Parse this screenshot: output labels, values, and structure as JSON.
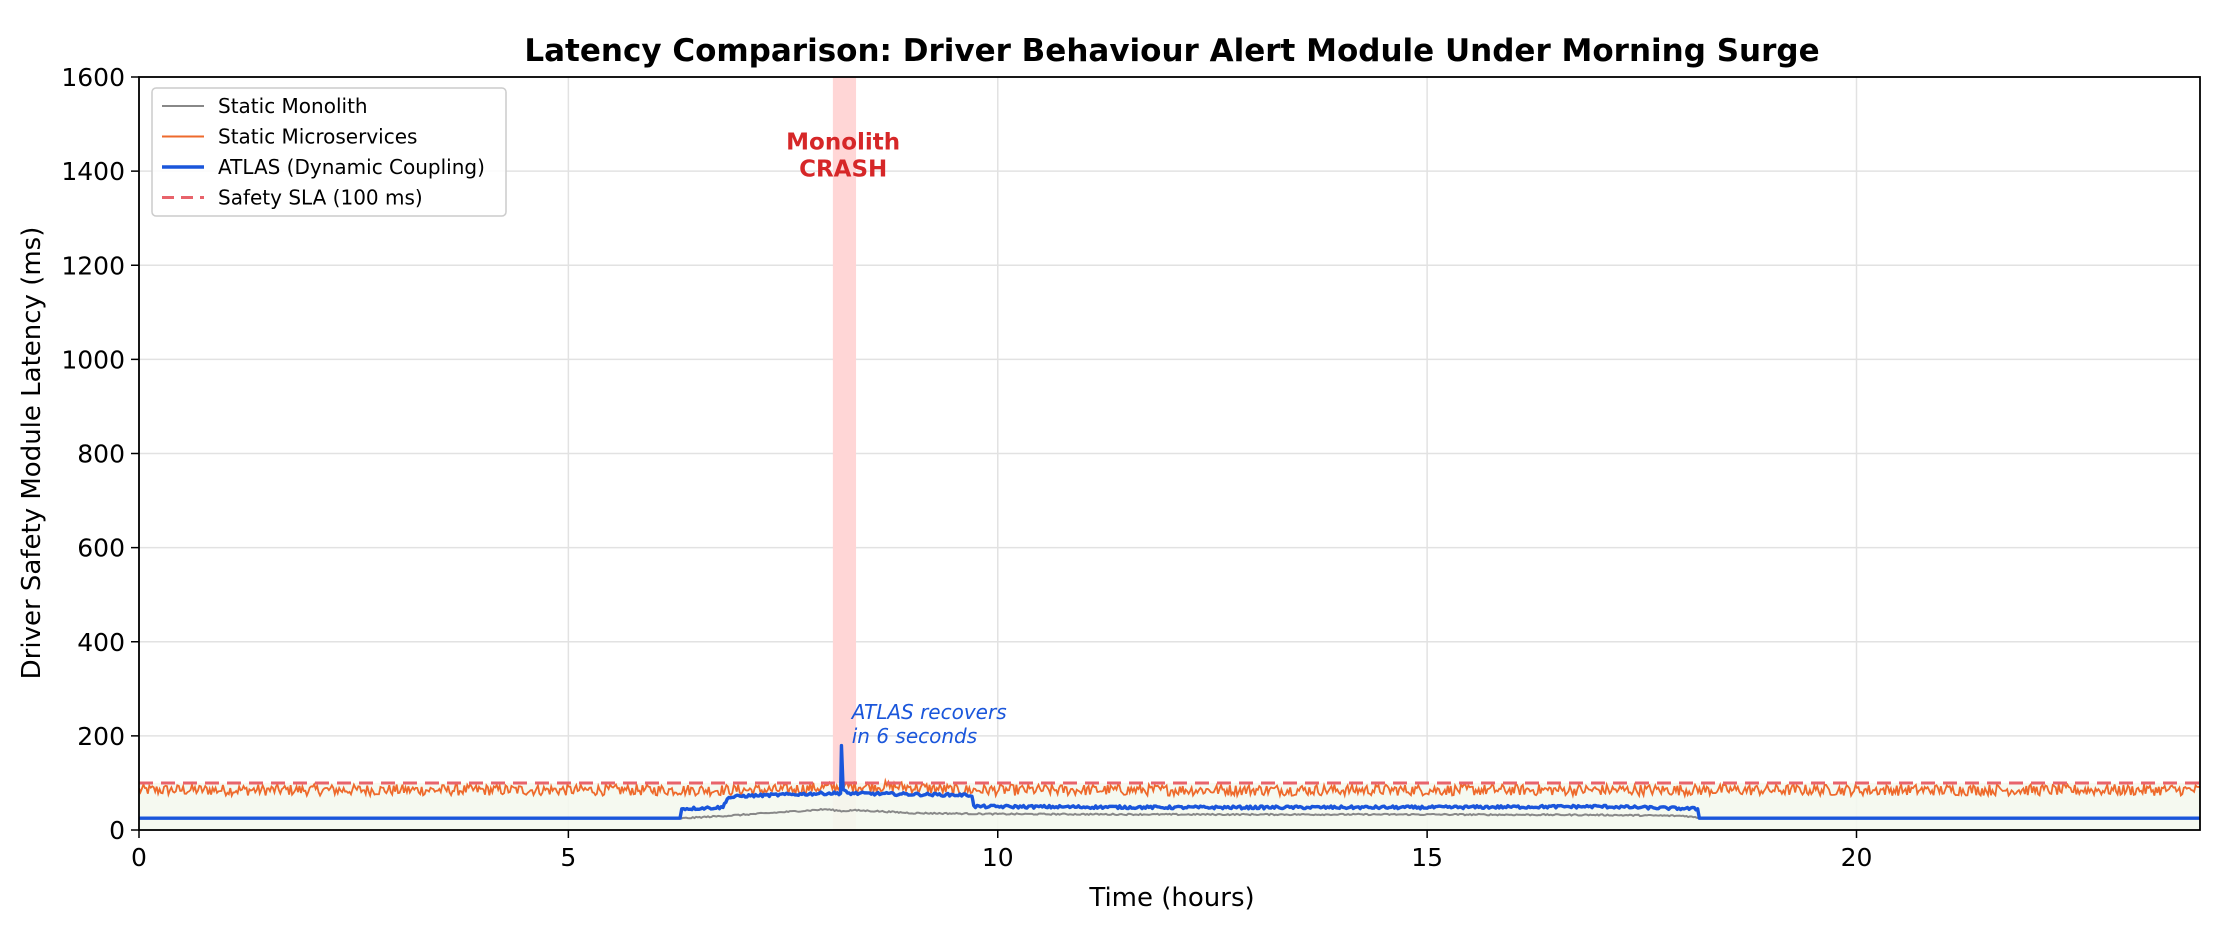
{
  "chart_data": {
    "type": "line",
    "title": "Latency Comparison: Driver Behaviour Alert Module Under Morning Surge",
    "xlabel": "Time (hours)",
    "ylabel": "Driver Safety Module Latency (ms)",
    "xlim": [
      0,
      24
    ],
    "ylim": [
      0,
      1600
    ],
    "xticks": [
      0,
      5,
      10,
      15,
      20
    ],
    "yticks": [
      0,
      200,
      400,
      600,
      800,
      1000,
      1200,
      1400,
      1600
    ],
    "grid": true,
    "legend_position": "top-left",
    "series": [
      {
        "name": "Static Monolith",
        "color": "#888888",
        "style": "solid",
        "points": [
          [
            0,
            25
          ],
          [
            6.3,
            25
          ],
          [
            6.35,
            25
          ],
          [
            7.0,
            32
          ],
          [
            7.5,
            38
          ],
          [
            8.0,
            44
          ],
          [
            8.2,
            40
          ],
          [
            8.3,
            42
          ],
          [
            8.6,
            40
          ],
          [
            9.0,
            36
          ],
          [
            10.0,
            34
          ],
          [
            12.0,
            33
          ],
          [
            15.0,
            33
          ],
          [
            17.0,
            32
          ],
          [
            18.0,
            30
          ],
          [
            18.2,
            25
          ],
          [
            24,
            25
          ]
        ]
      },
      {
        "name": "Static Microservices",
        "color": "#ee6a2c",
        "style": "solid-noisy",
        "baseline": 85,
        "noise": 12
      },
      {
        "name": "ATLAS (Dynamic Coupling)",
        "color": "#1a56db",
        "style": "solid-thick",
        "points": [
          [
            0,
            25
          ],
          [
            6.3,
            25
          ],
          [
            6.32,
            45
          ],
          [
            6.8,
            48
          ],
          [
            6.85,
            68
          ],
          [
            7.0,
            72
          ],
          [
            7.5,
            75
          ],
          [
            8.0,
            78
          ],
          [
            8.17,
            78
          ],
          [
            8.18,
            180
          ],
          [
            8.2,
            85
          ],
          [
            8.25,
            78
          ],
          [
            9.0,
            76
          ],
          [
            9.7,
            74
          ],
          [
            9.72,
            50
          ],
          [
            12.0,
            48
          ],
          [
            15.0,
            48
          ],
          [
            17.0,
            50
          ],
          [
            18.15,
            45
          ],
          [
            18.17,
            25
          ],
          [
            24,
            25
          ]
        ]
      },
      {
        "name": "Safety SLA (100 ms)",
        "color": "#e8636b",
        "style": "dashed",
        "value": 100
      }
    ],
    "shaded_region": {
      "x": [
        8.08,
        8.35
      ],
      "color": "#ffd6d6"
    },
    "annotations": [
      {
        "text_lines": [
          "Monolith",
          "CRASH"
        ],
        "x": 8.2,
        "y": 1425,
        "color": "#d62728"
      },
      {
        "text_lines": [
          "ATLAS recovers",
          "in 6 seconds"
        ],
        "x": 8.3,
        "y": 215,
        "color": "#1a56db"
      }
    ]
  }
}
